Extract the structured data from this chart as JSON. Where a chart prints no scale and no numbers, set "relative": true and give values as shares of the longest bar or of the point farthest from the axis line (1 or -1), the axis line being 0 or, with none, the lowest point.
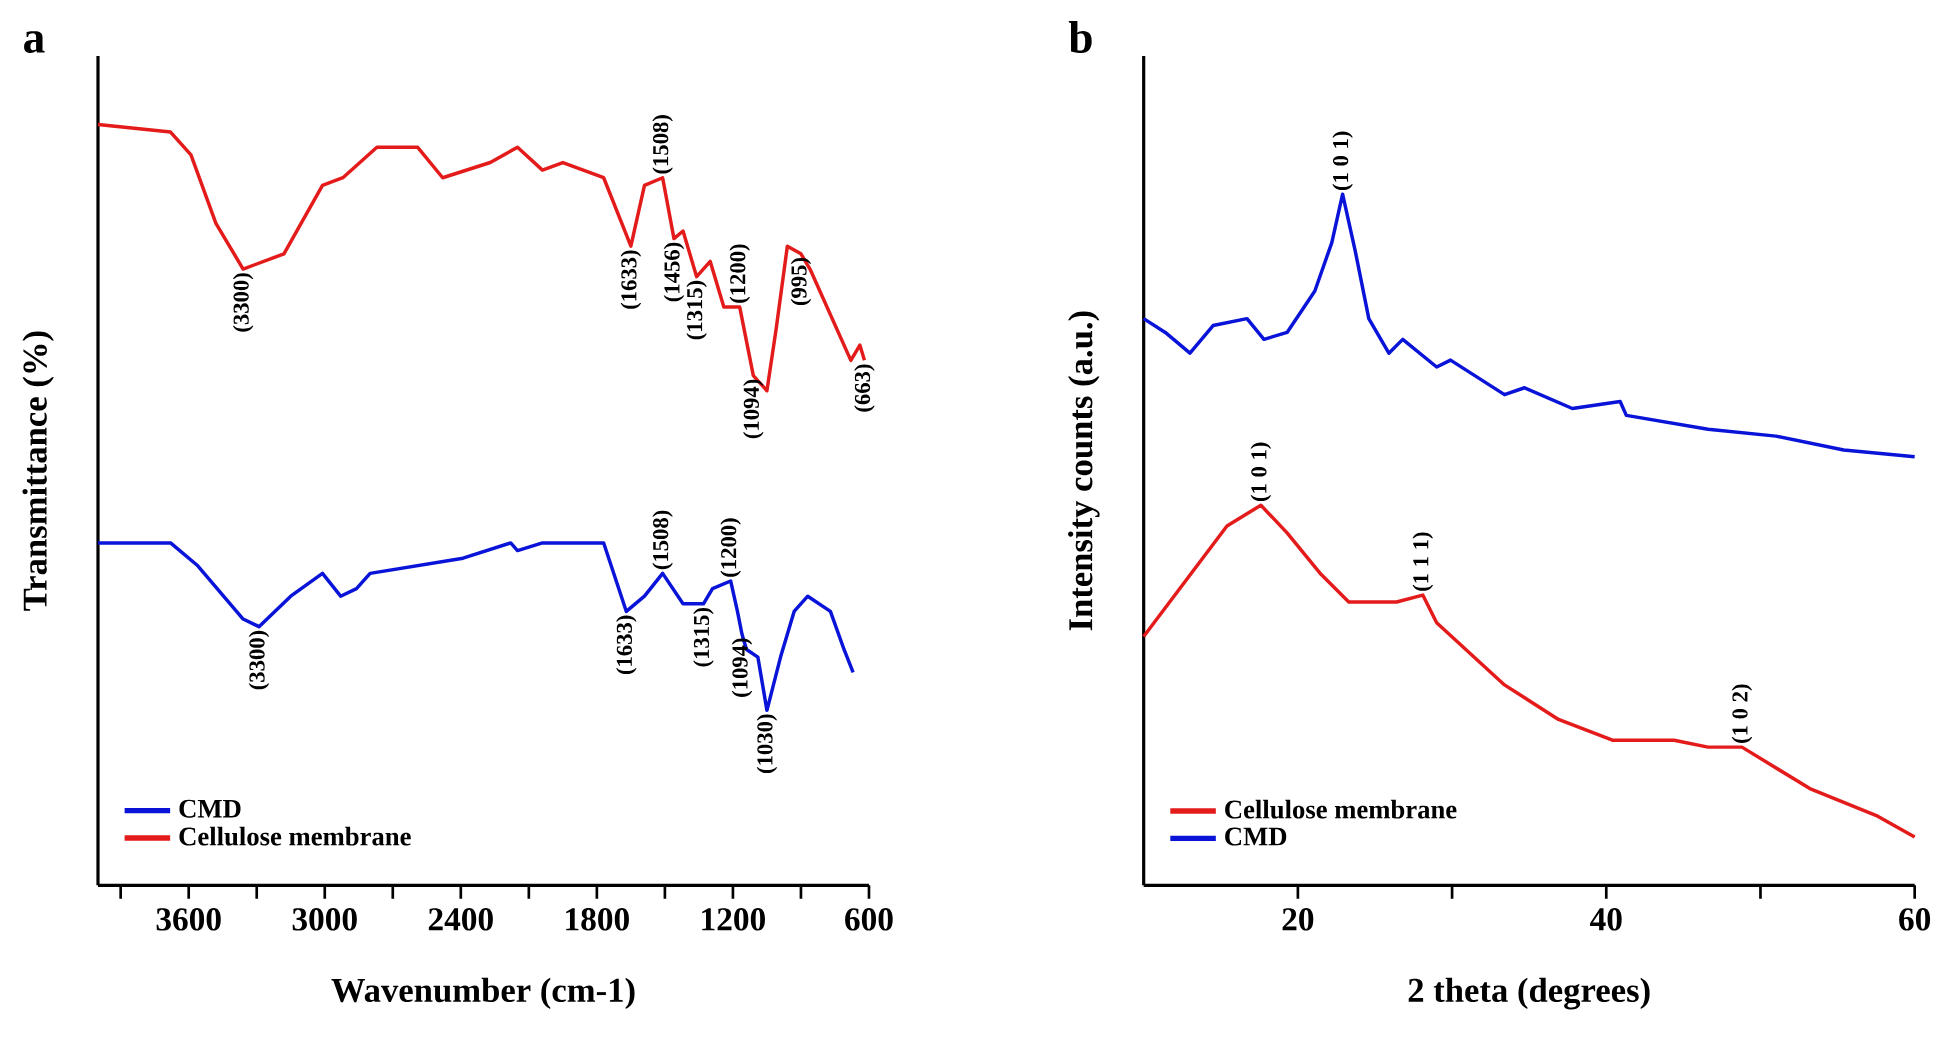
{
  "chart_data": [
    {
      "type": "line",
      "title": "a",
      "xlabel": "Wavenumber (cm-1)",
      "ylabel": "Transmittance (%)",
      "relative": true,
      "legend": "bottom left",
      "xlim": [
        4000,
        600
      ],
      "xticks": [
        {
          "value": 3900,
          "label": null
        },
        3600,
        {
          "value": 3300,
          "label": null
        },
        3000,
        {
          "value": 2700,
          "label": null
        },
        2400,
        {
          "value": 2100,
          "label": null
        },
        1800,
        {
          "value": 1500,
          "label": null
        },
        1200,
        {
          "value": 900,
          "label": null
        },
        600
      ],
      "series": [
        {
          "name": "CMD",
          "color": "#0a14d8",
          "x": [
            4000,
            3680,
            3560,
            3360,
            3290,
            3150,
            3010,
            2930,
            2860,
            2800,
            2390,
            2180,
            2150,
            2040,
            1770,
            1670,
            1590,
            1510,
            1420,
            1330,
            1290,
            1210,
            1180,
            1160,
            1140,
            1090,
            1050,
            990,
            930,
            870,
            770,
            710,
            670
          ],
          "values": [
            0.45,
            0.45,
            0.42,
            0.35,
            0.34,
            0.38,
            0.41,
            0.38,
            0.39,
            0.41,
            0.43,
            0.45,
            0.44,
            0.45,
            0.45,
            0.36,
            0.38,
            0.41,
            0.37,
            0.37,
            0.39,
            0.4,
            0.36,
            0.33,
            0.31,
            0.3,
            0.23,
            0.3,
            0.36,
            0.38,
            0.36,
            0.31,
            0.28
          ]
        },
        {
          "name": "Cellulose membrane",
          "color": "#e41b1b",
          "x": [
            4000,
            3680,
            3590,
            3480,
            3360,
            3180,
            3010,
            2920,
            2770,
            2590,
            2480,
            2270,
            2150,
            2040,
            1950,
            1770,
            1650,
            1590,
            1510,
            1460,
            1420,
            1360,
            1300,
            1240,
            1170,
            1110,
            1050,
            1010,
            960,
            900,
            860,
            680,
            640,
            620
          ],
          "values": [
            1.0,
            0.99,
            0.96,
            0.87,
            0.81,
            0.83,
            0.92,
            0.93,
            0.97,
            0.97,
            0.93,
            0.95,
            0.97,
            0.94,
            0.95,
            0.93,
            0.84,
            0.92,
            0.93,
            0.85,
            0.86,
            0.8,
            0.82,
            0.76,
            0.76,
            0.67,
            0.65,
            0.73,
            0.84,
            0.83,
            0.81,
            0.69,
            0.71,
            0.69
          ]
        }
      ],
      "annotations": [
        {
          "text": "(3300)",
          "x": 3360,
          "y": 0.81
        },
        {
          "text": "(1633)",
          "x": 1650,
          "y": 0.84
        },
        {
          "text": "(1508)",
          "x": 1510,
          "y": 0.93
        },
        {
          "text": "(1456)",
          "x": 1460,
          "y": 0.85
        },
        {
          "text": "(1315)",
          "x": 1360,
          "y": 0.8
        },
        {
          "text": "(1200)",
          "x": 1170,
          "y": 0.76
        },
        {
          "text": "(1094)",
          "x": 1110,
          "y": 0.67
        },
        {
          "text": "(995)",
          "x": 900,
          "y": 0.83
        },
        {
          "text": "(663)",
          "x": 620,
          "y": 0.69
        },
        {
          "text": "(3300)",
          "x": 3290,
          "y": 0.34
        },
        {
          "text": "(1633)",
          "x": 1670,
          "y": 0.36
        },
        {
          "text": "(1508)",
          "x": 1510,
          "y": 0.41
        },
        {
          "text": "(1315)",
          "x": 1330,
          "y": 0.37
        },
        {
          "text": "(1200)",
          "x": 1210,
          "y": 0.4
        },
        {
          "text": "(1094)",
          "x": 1160,
          "y": 0.33
        },
        {
          "text": "(1030)",
          "x": 1050,
          "y": 0.23
        }
      ]
    },
    {
      "type": "line",
      "title": "b",
      "xlabel": "2 theta (degrees)",
      "ylabel": "Intensity counts (a.u.)",
      "relative": true,
      "legend": "bottom left",
      "xlim": [
        10,
        60
      ],
      "xticks": [
        20,
        {
          "value": 30,
          "label": null
        },
        40,
        {
          "value": 50,
          "label": null
        },
        60
      ],
      "series": [
        {
          "name": "Cellulose membrane",
          "color": "#e41b1b",
          "x": [
            10,
            12.7,
            15.4,
            17.6,
            19.3,
            21.5,
            23.3,
            26.4,
            28.1,
            29.0,
            33.4,
            36.9,
            40.4,
            44.4,
            46.6,
            48.8,
            53.2,
            57.6,
            60
          ],
          "values": [
            0.36,
            0.44,
            0.52,
            0.55,
            0.51,
            0.45,
            0.41,
            0.41,
            0.42,
            0.38,
            0.29,
            0.24,
            0.21,
            0.21,
            0.2,
            0.2,
            0.14,
            0.1,
            0.07
          ]
        },
        {
          "name": "CMD",
          "color": "#0a14d8",
          "x": [
            10,
            11.4,
            13.0,
            14.5,
            16.7,
            17.8,
            19.3,
            21.1,
            22.2,
            22.9,
            23.7,
            24.6,
            25.9,
            26.8,
            29.0,
            29.9,
            33.4,
            34.7,
            37.8,
            40.9,
            41.3,
            46.6,
            51.0,
            55.4,
            60
          ],
          "values": [
            0.82,
            0.8,
            0.77,
            0.81,
            0.82,
            0.79,
            0.8,
            0.86,
            0.93,
            1.0,
            0.92,
            0.82,
            0.77,
            0.79,
            0.75,
            0.76,
            0.71,
            0.72,
            0.69,
            0.7,
            0.68,
            0.66,
            0.65,
            0.63,
            0.62
          ]
        }
      ],
      "annotations": [
        {
          "text": "(1 0 1)",
          "x": 22.9,
          "y": 1.0
        },
        {
          "text": "(1 0 1)",
          "x": 17.6,
          "y": 0.55
        },
        {
          "text": "(1 1 1)",
          "x": 28.1,
          "y": 0.42
        },
        {
          "text": "(1 0 2)",
          "x": 48.8,
          "y": 0.2
        }
      ]
    }
  ]
}
